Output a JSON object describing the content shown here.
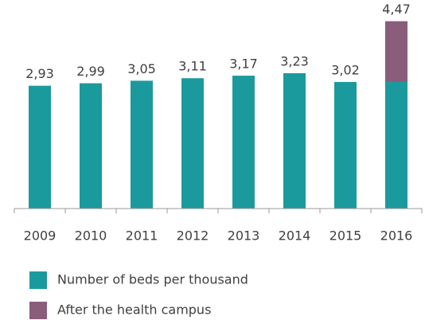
{
  "chart_data": {
    "type": "stacked-bar",
    "categories": [
      "2009",
      "2010",
      "2011",
      "2012",
      "2013",
      "2014",
      "2015",
      "2016"
    ],
    "series": [
      {
        "name": "Number of beds per thousand",
        "color": "#1b9a9e",
        "values": [
          2.93,
          2.99,
          3.05,
          3.11,
          3.17,
          3.23,
          3.02,
          3.02
        ]
      },
      {
        "name": "After the health campus",
        "color": "#8a5d7b",
        "values": [
          0,
          0,
          0,
          0,
          0,
          0,
          0,
          1.45
        ]
      }
    ],
    "totals": [
      2.93,
      2.99,
      3.05,
      3.11,
      3.17,
      3.23,
      3.02,
      4.47
    ],
    "total_labels": [
      "2,93",
      "2,99",
      "3,05",
      "3,11",
      "3,17",
      "3,23",
      "3,02",
      "4,47"
    ],
    "ylim": [
      0,
      4.9
    ]
  }
}
